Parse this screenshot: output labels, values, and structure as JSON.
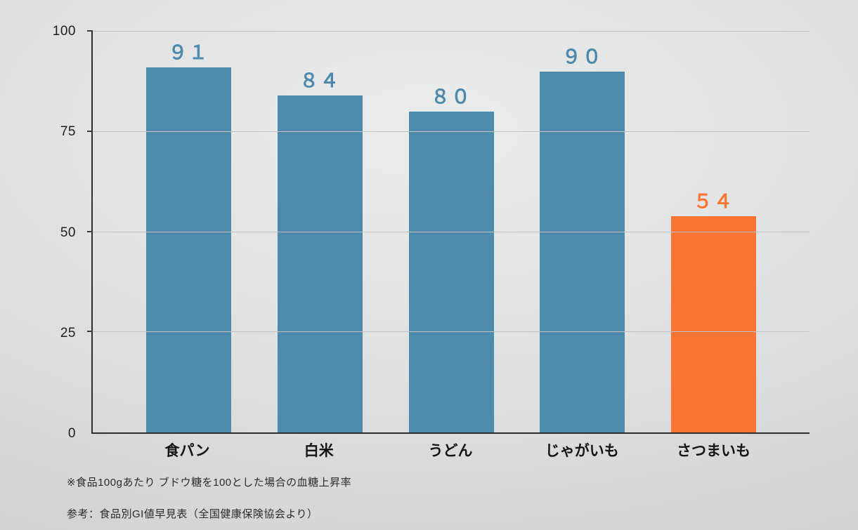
{
  "chart_data": {
    "type": "bar",
    "title": "",
    "xlabel": "",
    "ylabel": "",
    "categories": [
      "食パン",
      "白米",
      "うどん",
      "じゃがいも",
      "さつまいも"
    ],
    "values": [
      91,
      84,
      80,
      90,
      54
    ],
    "value_labels": [
      "９１",
      "８４",
      "８０",
      "９０",
      "５４"
    ],
    "bar_colors": [
      "#4e8aab",
      "#4e8aab",
      "#4e8aab",
      "#4e8aab",
      "#fa7532"
    ],
    "ylim": [
      0,
      100
    ],
    "yticks": [
      100,
      75,
      50,
      25,
      0
    ],
    "grid": true,
    "legend": "none"
  },
  "colors": {
    "bar_blue": "#4e8aab",
    "bar_orange": "#fa7532",
    "axis": "#2e2e2e",
    "gridline": "#bfc1c3",
    "background": "#dadcdd"
  },
  "footnotes": {
    "note1": "※食品100gあたり ブドウ糖を100とした場合の血糖上昇率",
    "note2": "参考：食品別GI値早見表（全国健康保険協会より）"
  }
}
